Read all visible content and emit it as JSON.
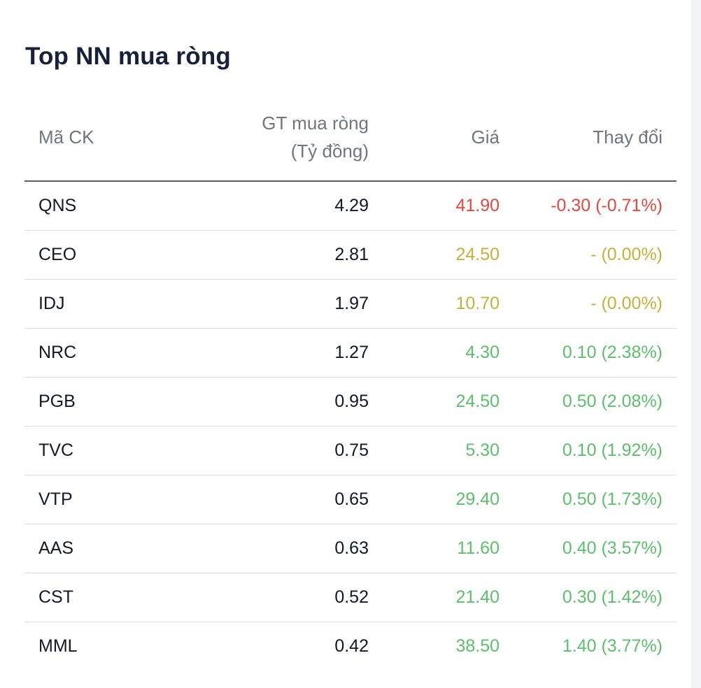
{
  "panel": {
    "title": "Top NN mua ròng"
  },
  "table": {
    "headers": {
      "code": "Mã CK",
      "net_buy_line1": "GT mua ròng",
      "net_buy_line2": "(Tỷ đồng)",
      "price": "Giá",
      "change": "Thay đổi"
    },
    "rows": [
      {
        "code": "QNS",
        "net_buy": "4.29",
        "price": "41.90",
        "change": "-0.30 (-0.71%)",
        "trend": "down"
      },
      {
        "code": "CEO",
        "net_buy": "2.81",
        "price": "24.50",
        "change": "- (0.00%)",
        "trend": "ref"
      },
      {
        "code": "IDJ",
        "net_buy": "1.97",
        "price": "10.70",
        "change": "- (0.00%)",
        "trend": "ref"
      },
      {
        "code": "NRC",
        "net_buy": "1.27",
        "price": "4.30",
        "change": "0.10 (2.38%)",
        "trend": "up"
      },
      {
        "code": "PGB",
        "net_buy": "0.95",
        "price": "24.50",
        "change": "0.50 (2.08%)",
        "trend": "up"
      },
      {
        "code": "TVC",
        "net_buy": "0.75",
        "price": "5.30",
        "change": "0.10 (1.92%)",
        "trend": "up"
      },
      {
        "code": "VTP",
        "net_buy": "0.65",
        "price": "29.40",
        "change": "0.50 (1.73%)",
        "trend": "up"
      },
      {
        "code": "AAS",
        "net_buy": "0.63",
        "price": "11.60",
        "change": "0.40 (3.57%)",
        "trend": "up"
      },
      {
        "code": "CST",
        "net_buy": "0.52",
        "price": "21.40",
        "change": "0.30 (1.42%)",
        "trend": "up"
      },
      {
        "code": "MML",
        "net_buy": "0.42",
        "price": "38.50",
        "change": "1.40 (3.77%)",
        "trend": "up"
      }
    ]
  },
  "colors": {
    "down": "#e6473f",
    "ref": "#c5b13a",
    "up": "#5cc06b",
    "text": "#14182a",
    "header": "#70757f"
  }
}
